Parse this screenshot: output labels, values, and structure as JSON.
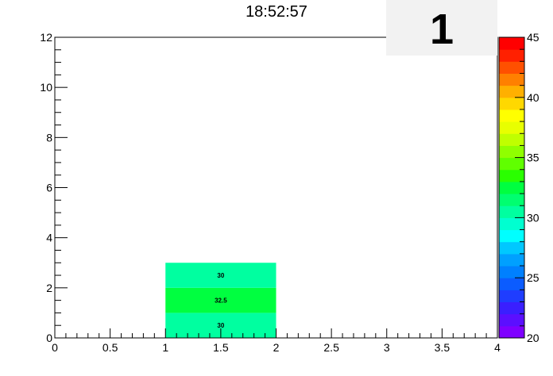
{
  "title": "18:52:57",
  "stats_box": {
    "entries": "1"
  },
  "chart_data": {
    "type": "heatmap",
    "title": "18:52:57",
    "xlim": [
      0,
      4
    ],
    "ylim": [
      0,
      12
    ],
    "x_ticks": [
      0,
      0.5,
      1,
      1.5,
      2,
      2.5,
      3,
      3.5,
      4
    ],
    "x_tick_labels": [
      "0",
      "0.5",
      "1",
      "1.5",
      "2",
      "2.5",
      "3",
      "3.5",
      "4"
    ],
    "y_ticks": [
      0,
      2,
      4,
      6,
      8,
      10,
      12
    ],
    "y_tick_labels": [
      "0",
      "2",
      "4",
      "6",
      "8",
      "10",
      "12"
    ],
    "cells": [
      {
        "x0": 1,
        "x1": 2,
        "y0": 0,
        "y1": 1,
        "value": 30,
        "label": "30"
      },
      {
        "x0": 1,
        "x1": 2,
        "y0": 1,
        "y1": 2,
        "value": 32.5,
        "label": "32.5"
      },
      {
        "x0": 1,
        "x1": 2,
        "y0": 2,
        "y1": 3,
        "value": 30,
        "label": "30"
      }
    ],
    "color_scale": {
      "zlim": [
        20,
        45
      ],
      "tick_values": [
        20,
        25,
        30,
        35,
        40,
        45
      ],
      "tick_labels": [
        "20",
        "25",
        "30",
        "35",
        "40",
        "45"
      ],
      "palette": [
        "#7f00ff",
        "#5b0fff",
        "#3a1fff",
        "#1f3dff",
        "#0b5cff",
        "#0080ff",
        "#00a0ff",
        "#00c8ff",
        "#00ffff",
        "#00ffd0",
        "#00ffa0",
        "#00ff70",
        "#00ff40",
        "#2aff00",
        "#60ff00",
        "#90ff00",
        "#c0ff00",
        "#e8ff00",
        "#ffff00",
        "#ffd800",
        "#ffb000",
        "#ff8000",
        "#ff5000",
        "#ff2000",
        "#ff0000"
      ]
    },
    "grid": false
  }
}
